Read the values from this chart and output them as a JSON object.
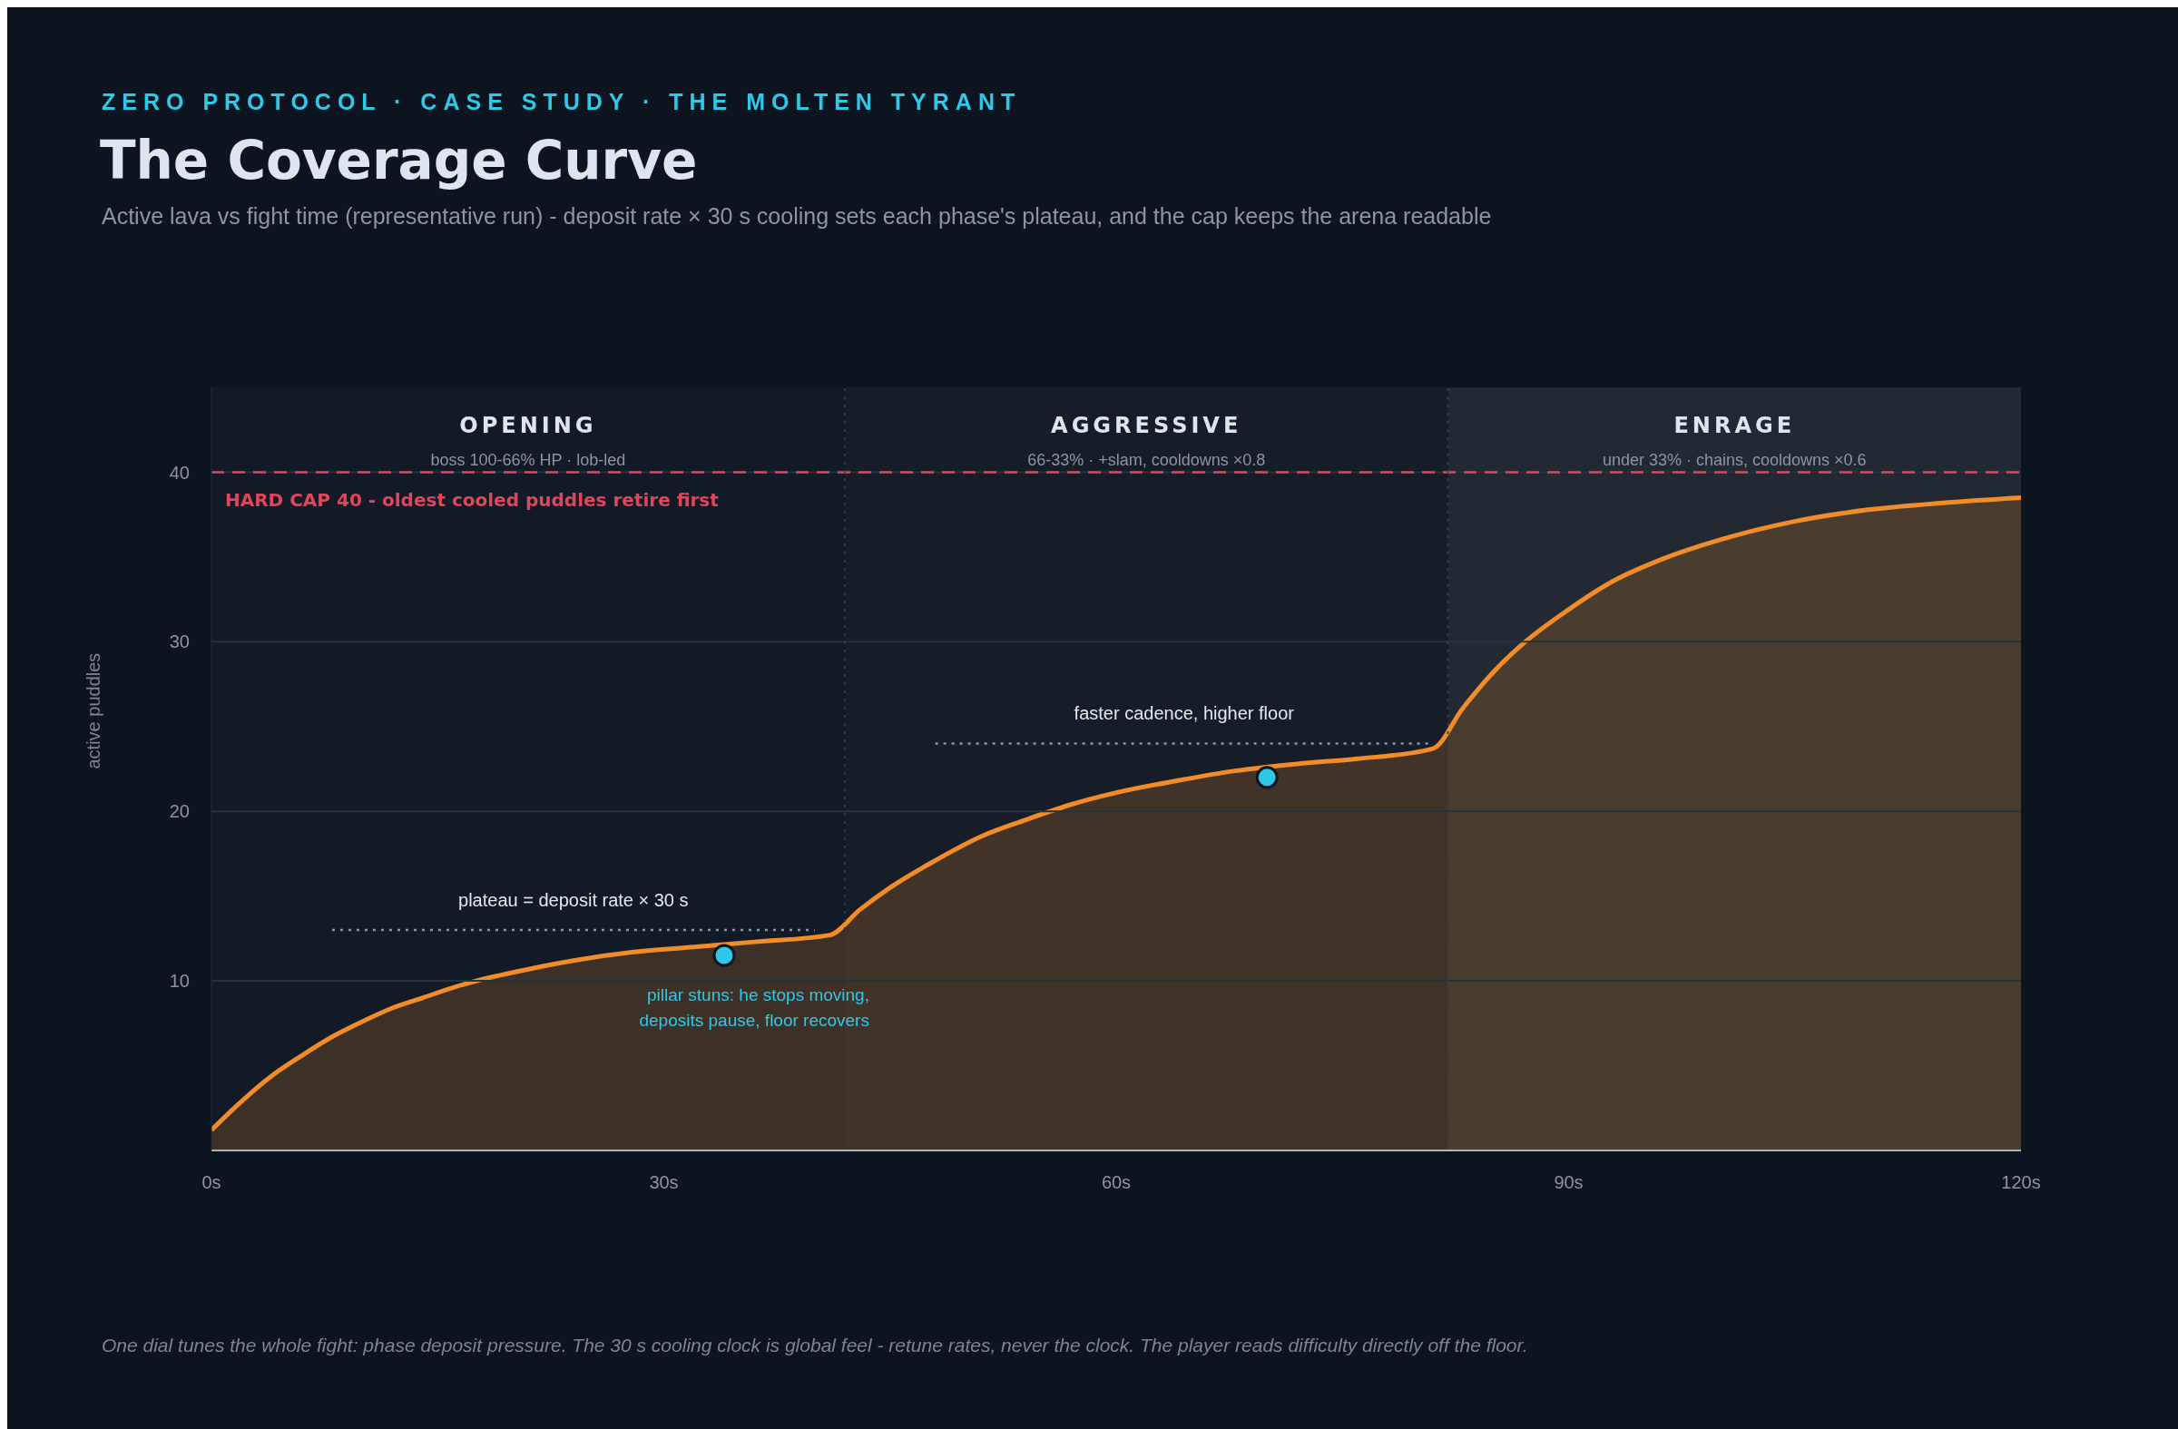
{
  "chart_data": {
    "type": "area",
    "title": "The Coverage Curve",
    "subtitle": "Active lava vs fight time (representative run) - deposit rate × 30 s cooling sets each phase's plateau, and the cap keeps the arena readable",
    "ylabel": "active puddles",
    "xlim": [
      0,
      120
    ],
    "xticks": [
      {
        "value": 0,
        "label": "0s"
      },
      {
        "value": 30,
        "label": "30s"
      },
      {
        "value": 60,
        "label": "60s"
      },
      {
        "value": 90,
        "label": "90s"
      },
      {
        "value": 120,
        "label": "120s"
      }
    ],
    "ylim": [
      0,
      45
    ],
    "yticks": [
      10,
      20,
      30,
      40
    ],
    "grid": "y",
    "series": [
      {
        "color": "#f28c28",
        "x": [
          0,
          2,
          4,
          6,
          8,
          10,
          12,
          14,
          16,
          18,
          20,
          24,
          28,
          32,
          36,
          41,
          43,
          45,
          48,
          51,
          54,
          57,
          60,
          64,
          68,
          72,
          76,
          81,
          83,
          85,
          87,
          90,
          93,
          96,
          100,
          105,
          110,
          115,
          120
        ],
        "values": [
          1.2,
          2.9,
          4.4,
          5.6,
          6.7,
          7.6,
          8.4,
          9.0,
          9.6,
          10.1,
          10.5,
          11.2,
          11.7,
          12.0,
          12.3,
          12.7,
          14.2,
          15.5,
          17.1,
          18.5,
          19.5,
          20.4,
          21.1,
          21.8,
          22.4,
          22.8,
          23.1,
          23.7,
          26.1,
          28.2,
          29.9,
          31.9,
          33.6,
          34.8,
          36.0,
          37.1,
          37.8,
          38.2,
          38.5
        ]
      },
      {
        "type": "scatter",
        "color": "#2ec9e8",
        "x": [
          34,
          70
        ],
        "values": [
          11.5,
          22
        ]
      },
      {
        "type": "line",
        "color": "#8a96a3",
        "line_style": "dotted",
        "x": [
          8,
          40
        ],
        "values": [
          13,
          13
        ]
      },
      {
        "type": "line",
        "color": "#8a96a3",
        "line_style": "dotted",
        "x": [
          48,
          81
        ],
        "values": [
          24,
          24
        ]
      }
    ],
    "ref_lines": [
      {
        "axis": "y",
        "value": 40,
        "label": "HARD CAP 40 - oldest cooled puddles retire first",
        "color": "#e0455a",
        "line_style": "dashed"
      },
      {
        "axis": "x",
        "value": 42,
        "color": "#2c3a48",
        "line_style": "dotted"
      },
      {
        "axis": "x",
        "value": 82,
        "color": "#3a4048",
        "line_style": "dotted"
      }
    ],
    "bands": [
      {
        "axis": "x",
        "from": 0,
        "to": 42,
        "label": "OPENING",
        "color": "#111a26"
      },
      {
        "axis": "x",
        "from": 42,
        "to": 82,
        "label": "AGGRESSIVE",
        "color": "#161d28"
      },
      {
        "axis": "x",
        "from": 82,
        "to": 120,
        "label": "ENRAGE",
        "color": "#222933"
      }
    ],
    "annotations": [
      "ZERO PROTOCOL · CASE STUDY · THE MOLTEN TYRANT",
      "boss 100-66% HP · lob-led",
      "66-33% · +slam, cooldowns ×0.8",
      "under 33% · chains, cooldowns ×0.6",
      {
        "text": "plateau = deposit rate × 30 s",
        "x": 24,
        "y": 13
      },
      {
        "text": "faster cadence, higher floor",
        "x": 64.5,
        "y": 24
      },
      {
        "text": "pillar stuns: he stops moving, deposits pause, floor recovers",
        "x": 34,
        "y": 11.5
      },
      "One dial tunes the whole fight: phase deposit pressure. The 30 s cooling clock is global feel - retune rates, never the clock. The player reads difficulty directly off the floor."
    ]
  }
}
